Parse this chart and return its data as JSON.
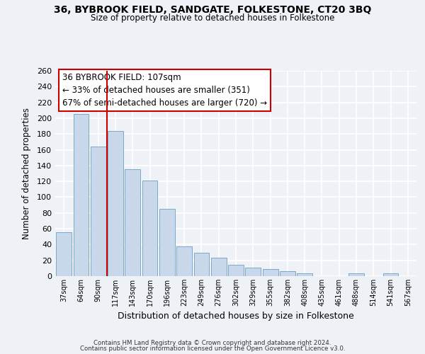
{
  "title": "36, BYBROOK FIELD, SANDGATE, FOLKESTONE, CT20 3BQ",
  "subtitle": "Size of property relative to detached houses in Folkestone",
  "xlabel": "Distribution of detached houses by size in Folkestone",
  "ylabel": "Number of detached properties",
  "categories": [
    "37sqm",
    "64sqm",
    "90sqm",
    "117sqm",
    "143sqm",
    "170sqm",
    "196sqm",
    "223sqm",
    "249sqm",
    "276sqm",
    "302sqm",
    "329sqm",
    "355sqm",
    "382sqm",
    "408sqm",
    "435sqm",
    "461sqm",
    "488sqm",
    "514sqm",
    "541sqm",
    "567sqm"
  ],
  "values": [
    56,
    205,
    164,
    184,
    135,
    121,
    85,
    38,
    30,
    23,
    14,
    11,
    9,
    6,
    4,
    0,
    0,
    4,
    0,
    4,
    0
  ],
  "bar_color": "#c8d8ea",
  "bar_edge_color": "#7aaac8",
  "vline_x": 2.5,
  "vline_color": "#cc0000",
  "annotation_title": "36 BYBROOK FIELD: 107sqm",
  "annotation_line1": "← 33% of detached houses are smaller (351)",
  "annotation_line2": "67% of semi-detached houses are larger (720) →",
  "annotation_box_color": "#ffffff",
  "annotation_box_edge": "#cc0000",
  "ylim": [
    0,
    260
  ],
  "yticks": [
    0,
    20,
    40,
    60,
    80,
    100,
    120,
    140,
    160,
    180,
    200,
    220,
    240,
    260
  ],
  "background_color": "#eef2f7",
  "grid_color": "#ffffff",
  "footer1": "Contains HM Land Registry data © Crown copyright and database right 2024.",
  "footer2": "Contains public sector information licensed under the Open Government Licence v3.0."
}
